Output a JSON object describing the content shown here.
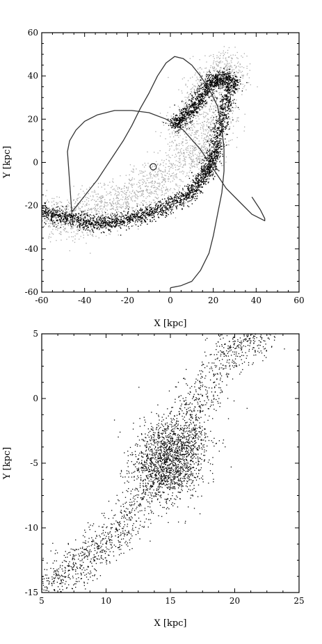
{
  "chart_data": [
    {
      "type": "scatter",
      "title": "",
      "xlabel": "X [kpc]",
      "ylabel": "Y [kpc]",
      "xlim": [
        -60,
        60
      ],
      "ylim": [
        -60,
        60
      ],
      "x_ticks": [
        -60,
        -40,
        -20,
        0,
        20,
        40,
        60
      ],
      "y_ticks": [
        -60,
        -40,
        -20,
        0,
        20,
        40,
        60
      ],
      "grid": false,
      "colors": {
        "halo_particles": "#a8a8a8",
        "core_particles": "#000000",
        "orbit": "#333333"
      },
      "series": [
        {
          "x": [
            -60,
            -55,
            -50,
            -45,
            -40,
            -35,
            -30,
            -25,
            -20,
            -15,
            -10,
            -5,
            0,
            4,
            8,
            12,
            14,
            16,
            18,
            19,
            20,
            22,
            24,
            26,
            27,
            27,
            26,
            24,
            22,
            20,
            18,
            16,
            14,
            12,
            10,
            8,
            6,
            4,
            -2,
            -8,
            -14,
            -20,
            -26,
            -32,
            -38,
            -44,
            -50,
            -56
          ],
          "y": [
            -25,
            -24,
            -23,
            -21,
            -20,
            -20,
            -19,
            -17,
            -14,
            -11,
            -8,
            -5,
            -2,
            0,
            1,
            2,
            3,
            5,
            8,
            12,
            14,
            18,
            24,
            32,
            37,
            42,
            44,
            44,
            42,
            40,
            37,
            34,
            30,
            27,
            24,
            20,
            16,
            13,
            -11,
            -14,
            -17,
            -20,
            -23,
            -26,
            -28,
            -28,
            -27,
            -26
          ]
        },
        {
          "x": [
            -60,
            -56,
            -52,
            -48,
            -44,
            -40,
            -36,
            -32,
            -28,
            -24,
            -20,
            -16,
            -12,
            -8,
            -4,
            0,
            4,
            8,
            10,
            12,
            14,
            16,
            18,
            19,
            20,
            21,
            22,
            23,
            24,
            25,
            26,
            28,
            29,
            27,
            24,
            22,
            20,
            18,
            16,
            14,
            12,
            10,
            8,
            6,
            4,
            2
          ],
          "y": [
            -22,
            -24,
            -25,
            -26,
            -26,
            -27,
            -28,
            -28,
            -28,
            -27,
            -26,
            -25,
            -24,
            -23,
            -21,
            -19,
            -17,
            -15,
            -13,
            -10,
            -7,
            -5,
            -3,
            0,
            3,
            6,
            10,
            15,
            20,
            25,
            29,
            34,
            37,
            39,
            39,
            38,
            38,
            36,
            34,
            31,
            28,
            25,
            23,
            21,
            19,
            18
          ]
        },
        {
          "x": [
            0,
            5,
            10,
            14,
            18,
            20,
            22,
            24,
            25,
            25,
            24,
            22,
            18,
            14,
            10,
            6,
            2,
            -2,
            -6,
            -10,
            -14,
            -18,
            -22,
            -26,
            -30,
            -34,
            -38,
            -42,
            -46,
            -48,
            -47,
            -44,
            -40,
            -34,
            -26,
            -18,
            -10,
            -2,
            6,
            14,
            20,
            26,
            32,
            38,
            42,
            44,
            44,
            42,
            38
          ],
          "y": [
            -58,
            -57,
            -55,
            -50,
            -42,
            -34,
            -24,
            -14,
            -4,
            6,
            16,
            26,
            34,
            40,
            45,
            48,
            49,
            46,
            40,
            32,
            25,
            17,
            10,
            4,
            -2,
            -8,
            -13,
            -18,
            -23,
            5,
            10,
            15,
            19,
            22,
            24,
            24,
            23,
            20,
            15,
            6,
            -3,
            -12,
            -18,
            -24,
            -26,
            -27,
            -26,
            -22,
            -16
          ]
        },
        {
          "x": [
            -8
          ],
          "y": [
            -2
          ]
        }
      ]
    },
    {
      "type": "scatter",
      "title": "",
      "xlabel": "X [kpc]",
      "ylabel": "Y [kpc]",
      "xlim": [
        5,
        25
      ],
      "ylim": [
        -15,
        5
      ],
      "x_ticks": [
        5,
        10,
        15,
        20,
        25
      ],
      "y_ticks": [
        -15,
        -10,
        -5,
        0,
        5
      ],
      "grid": false,
      "colors": {
        "particles": "#000000"
      },
      "series": [
        {
          "x": [
            5,
            5.5,
            6,
            6.5,
            7,
            7.5,
            8,
            8.5,
            9,
            9.5,
            10,
            10.5,
            11,
            11.5,
            12,
            12.5,
            13,
            13.5,
            14,
            14.5,
            15,
            15.5,
            16,
            16.5,
            17,
            17.5,
            18,
            18.5,
            19,
            19.5,
            20,
            20.5,
            21,
            21.5,
            22
          ],
          "y": [
            -15,
            -14.6,
            -14.2,
            -13.8,
            -13.4,
            -13,
            -12.6,
            -12.2,
            -11.8,
            -11.4,
            -11,
            -10.6,
            -10.2,
            -9.6,
            -9,
            -8,
            -6.5,
            -5.5,
            -5,
            -4.8,
            -4.8,
            -4.6,
            -4,
            -2.5,
            -1,
            0,
            1,
            2,
            3,
            3.6,
            4,
            4.3,
            4.6,
            4.8,
            5
          ]
        }
      ]
    }
  ]
}
